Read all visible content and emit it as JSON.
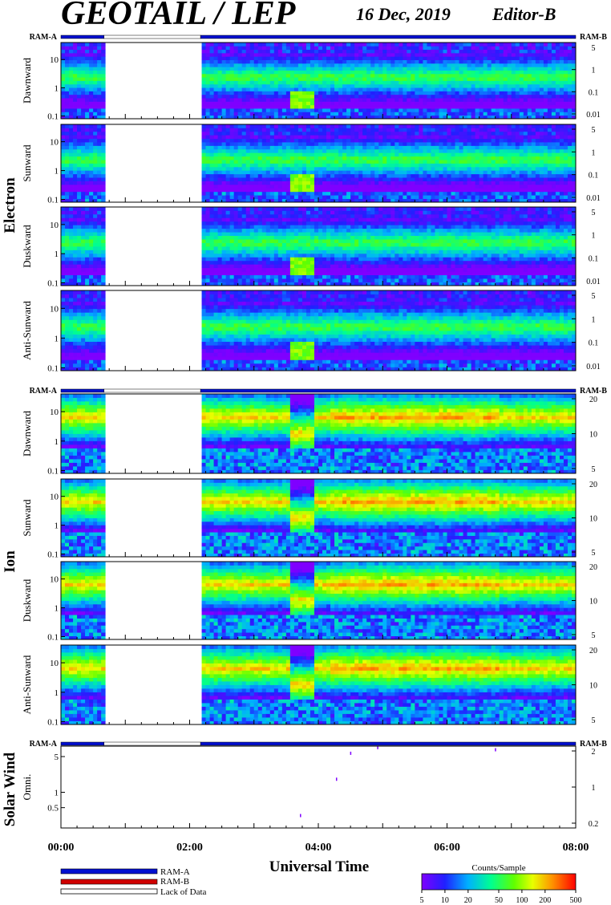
{
  "header": {
    "title": "GEOTAIL / LEP",
    "date": "16 Dec, 2019",
    "editor": "Editor-B"
  },
  "ram_labels": {
    "a": "RAM-A",
    "b": "RAM-B"
  },
  "colors": {
    "ram_a": "#0010d0",
    "ram_b": "#d00000",
    "lack_of_data": "#ffffff"
  },
  "sections": [
    {
      "label": "Electron"
    },
    {
      "label": "Ion"
    },
    {
      "label": "Solar Wind"
    }
  ],
  "legend": {
    "items": [
      "RAM-A",
      "RAM-B",
      "Lack of Data"
    ]
  },
  "colorbar": {
    "title": "Counts/Sample",
    "ticks": [
      "5",
      "10",
      "20",
      "50",
      "100",
      "200",
      "500"
    ],
    "tick_values": [
      5,
      10,
      20,
      50,
      100,
      200,
      500
    ]
  },
  "chart_data": {
    "type": "heatmap",
    "xlabel": "Universal Time",
    "x_ticks": [
      "00:00",
      "02:00",
      "04:00",
      "06:00",
      "08:00"
    ],
    "x_tick_hours": [
      0,
      2,
      4,
      6,
      8
    ],
    "x_range_hours": [
      0,
      8
    ],
    "data_gaps_hours": [
      [
        0.67,
        2.17
      ]
    ],
    "ram_bar": [
      {
        "mode": "RAM-A",
        "from": 0,
        "to": 0.67
      },
      {
        "mode": "Lack of Data",
        "from": 0.67,
        "to": 2.17
      },
      {
        "mode": "RAM-A",
        "from": 2.17,
        "to": 8
      }
    ],
    "panels": [
      {
        "species": "Electron",
        "direction": "Dawnward",
        "left_ticks": [
          "10",
          "1",
          "0.1"
        ],
        "right_ticks": [
          "5",
          "1",
          "0.1",
          "0.01"
        ],
        "ylim": [
          0.08,
          40
        ],
        "log": true
      },
      {
        "species": "Electron",
        "direction": "Sunward",
        "left_ticks": [
          "10",
          "1",
          "0.1"
        ],
        "right_ticks": [
          "5",
          "1",
          "0.1",
          "0.01"
        ],
        "ylim": [
          0.08,
          40
        ],
        "log": true
      },
      {
        "species": "Electron",
        "direction": "Duskward",
        "left_ticks": [
          "10",
          "1",
          "0.1"
        ],
        "right_ticks": [
          "5",
          "1",
          "0.1",
          "0.01"
        ],
        "ylim": [
          0.08,
          40
        ],
        "log": true
      },
      {
        "species": "Electron",
        "direction": "Anti-Sunward",
        "left_ticks": [
          "10",
          "1",
          "0.1"
        ],
        "right_ticks": [
          "5",
          "1",
          "0.1",
          "0.01"
        ],
        "ylim": [
          0.08,
          40
        ],
        "log": true
      },
      {
        "species": "Ion",
        "direction": "Dawnward",
        "left_ticks": [
          "10",
          "1",
          "0.1"
        ],
        "right_ticks": [
          "20",
          "10",
          "5"
        ],
        "ylim": [
          0.08,
          40
        ],
        "log": true
      },
      {
        "species": "Ion",
        "direction": "Sunward",
        "left_ticks": [
          "10",
          "1",
          "0.1"
        ],
        "right_ticks": [
          "20",
          "10",
          "5"
        ],
        "ylim": [
          0.08,
          40
        ],
        "log": true
      },
      {
        "species": "Ion",
        "direction": "Duskward",
        "left_ticks": [
          "10",
          "1",
          "0.1"
        ],
        "right_ticks": [
          "20",
          "10",
          "5"
        ],
        "ylim": [
          0.08,
          40
        ],
        "log": true
      },
      {
        "species": "Ion",
        "direction": "Anti-Sunward",
        "left_ticks": [
          "10",
          "1",
          "0.1"
        ],
        "right_ticks": [
          "20",
          "10",
          "5"
        ],
        "ylim": [
          0.08,
          40
        ],
        "log": true
      },
      {
        "species": "Solar Wind",
        "direction": "Omni.",
        "left_ticks": [
          "5",
          "1",
          "0.5"
        ],
        "right_ticks": [
          "2",
          "1",
          "0.2"
        ],
        "ylim": [
          0.2,
          8
        ],
        "log": true
      }
    ],
    "solar_wind_points": [
      {
        "t": 3.72,
        "y": 0.35
      },
      {
        "t": 4.28,
        "y": 1.8
      },
      {
        "t": 4.5,
        "y": 5.8
      },
      {
        "t": 4.92,
        "y": 7.5
      },
      {
        "t": 6.75,
        "y": 6.8
      }
    ]
  }
}
